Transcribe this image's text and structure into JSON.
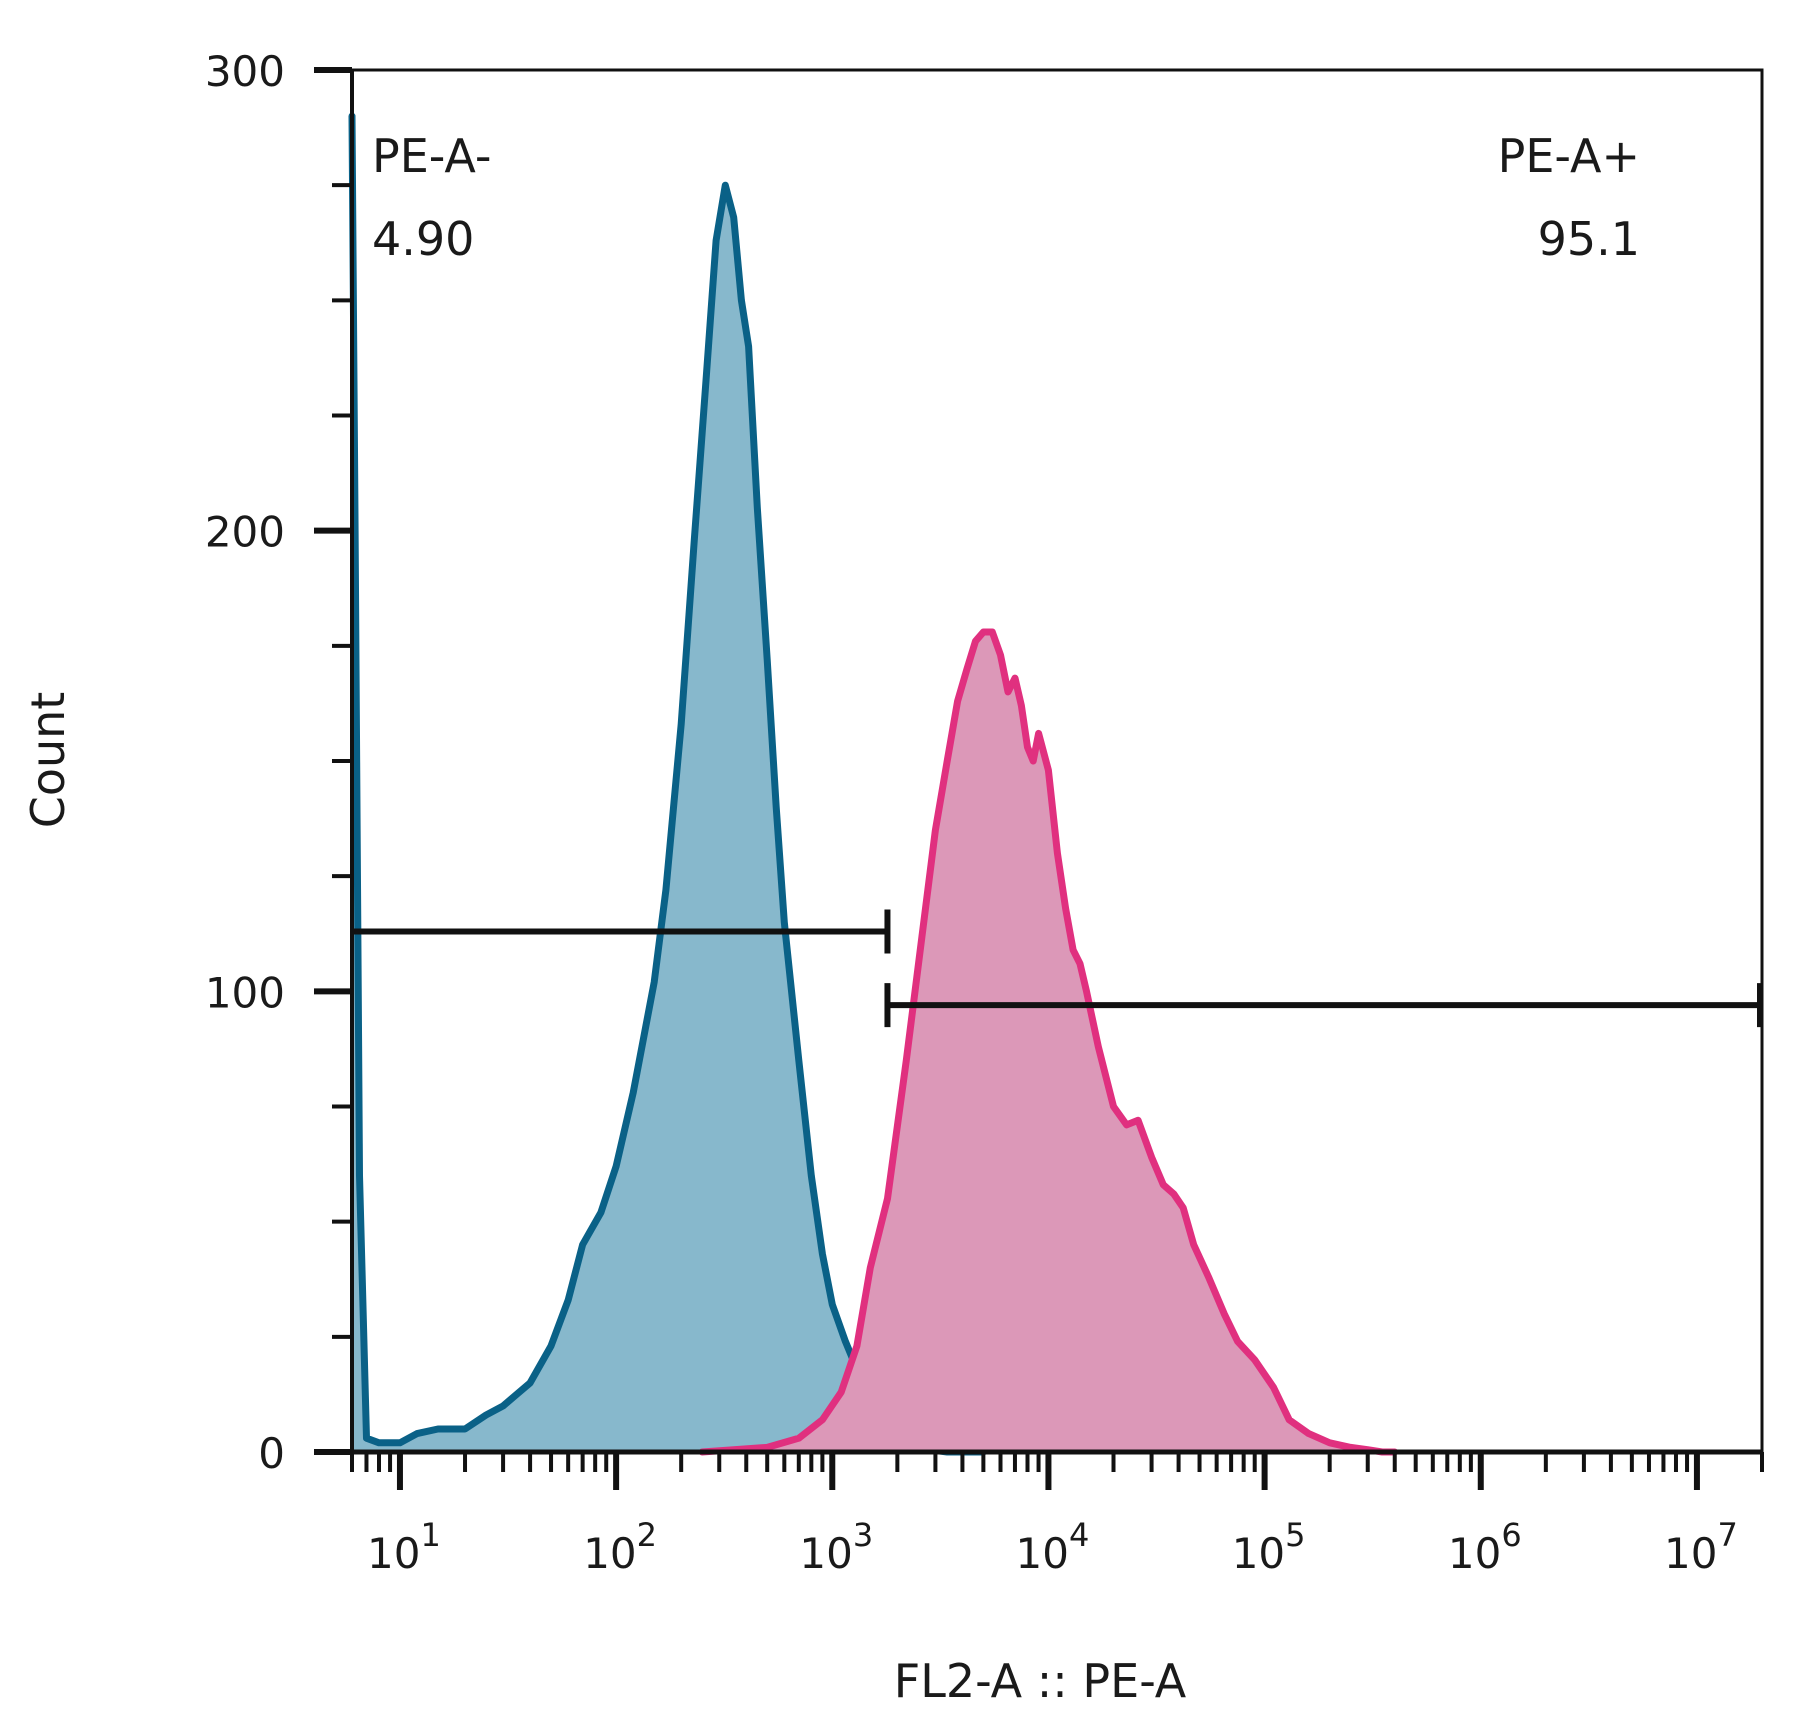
{
  "chart_data": {
    "type": "area",
    "xlabel": "FL2-A :: PE-A",
    "ylabel": "Count",
    "x_scale": "log",
    "xlim": [
      6,
      20000000
    ],
    "ylim": [
      0,
      300
    ],
    "x_ticks": [
      {
        "value": 10,
        "base": "10",
        "exp": "1"
      },
      {
        "value": 100,
        "base": "10",
        "exp": "2"
      },
      {
        "value": 1000,
        "base": "10",
        "exp": "3"
      },
      {
        "value": 10000,
        "base": "10",
        "exp": "4"
      },
      {
        "value": 100000,
        "base": "10",
        "exp": "5"
      },
      {
        "value": 1000000,
        "base": "10",
        "exp": "6"
      },
      {
        "value": 10000000,
        "base": "10",
        "exp": "7"
      }
    ],
    "y_ticks": [
      "0",
      "100",
      "200",
      "300"
    ],
    "series": [
      {
        "color": "#0a6187",
        "fill": "#87b8cc",
        "x": [
          6,
          6.2,
          6.5,
          7,
          8,
          10,
          12,
          15,
          20,
          25,
          30,
          40,
          50,
          60,
          70,
          85,
          100,
          120,
          150,
          170,
          200,
          230,
          260,
          290,
          320,
          350,
          380,
          410,
          450,
          500,
          550,
          600,
          700,
          800,
          900,
          1000,
          1150,
          1300,
          1500,
          1700,
          2000,
          2400,
          2800,
          3400,
          4000,
          5000
        ],
        "y": [
          290,
          200,
          60,
          3,
          2,
          2,
          4,
          5,
          5,
          8,
          10,
          15,
          23,
          33,
          45,
          52,
          62,
          78,
          102,
          122,
          158,
          198,
          232,
          263,
          275,
          268,
          250,
          240,
          205,
          172,
          140,
          115,
          85,
          60,
          43,
          32,
          24,
          18,
          13,
          8,
          4,
          1,
          0.5,
          0,
          0,
          0
        ]
      },
      {
        "color": "#e0307f",
        "fill": "#dc98b8",
        "x": [
          250,
          350,
          500,
          700,
          900,
          1100,
          1300,
          1500,
          1800,
          2200,
          2600,
          3000,
          3400,
          3800,
          4200,
          4600,
          5000,
          5500,
          6000,
          6500,
          7000,
          7500,
          8000,
          8500,
          9000,
          10000,
          11000,
          12000,
          13000,
          14000,
          15000,
          17000,
          20000,
          23000,
          26000,
          30000,
          34000,
          38000,
          42000,
          47000,
          55000,
          65000,
          75000,
          90000,
          110000,
          130000,
          160000,
          200000,
          250000,
          300000,
          350000,
          400000
        ],
        "y": [
          0,
          0.5,
          1,
          3,
          7,
          13,
          23,
          40,
          55,
          85,
          112,
          135,
          150,
          163,
          170,
          176,
          178,
          178,
          173,
          165,
          168,
          162,
          153,
          150,
          156,
          148,
          130,
          118,
          109,
          106,
          100,
          88,
          75,
          71,
          72,
          64,
          58,
          56,
          53,
          45,
          38,
          30,
          24,
          20,
          14,
          7,
          4,
          2,
          1,
          0.5,
          0,
          0
        ]
      }
    ],
    "gates": [
      {
        "label": "PE-A-",
        "value": "4.90",
        "x_start": 6,
        "x_end": 1800,
        "y": 113
      },
      {
        "label": "PE-A+",
        "value": "95.1",
        "x_start": 1800,
        "x_end": 20000000,
        "y": 97
      }
    ]
  }
}
